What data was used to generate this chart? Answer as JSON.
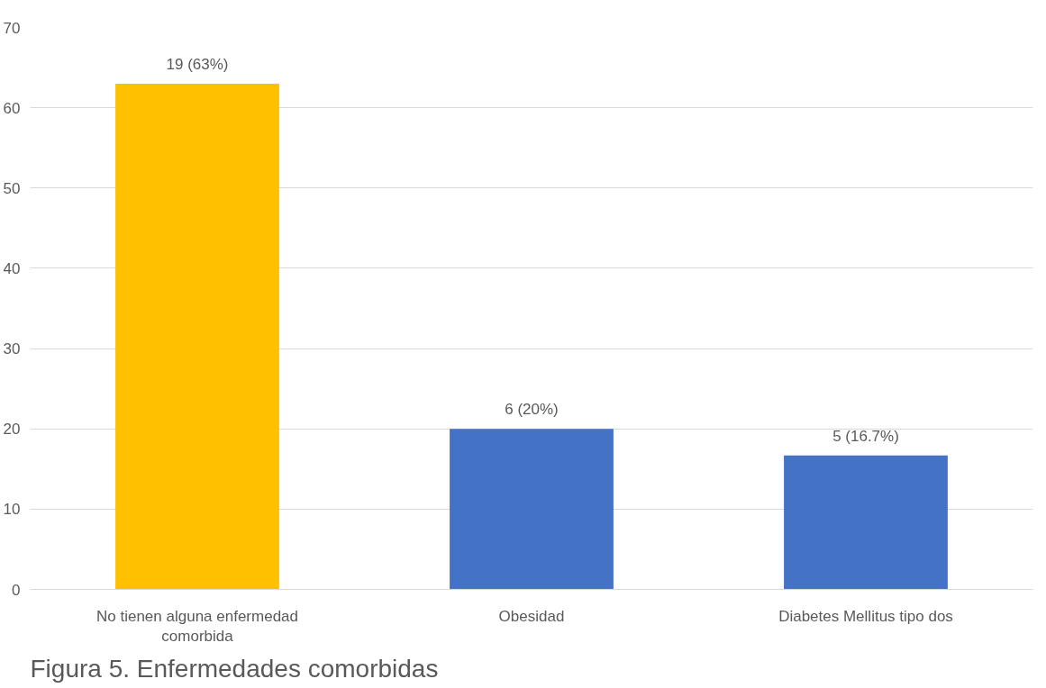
{
  "chart_data": {
    "type": "bar",
    "title": "Figura 5. Enfermedades  comorbidas",
    "categories": [
      "No tienen alguna enfermedad comorbida",
      "Obesidad",
      "Diabetes Mellitus tipo dos"
    ],
    "values": [
      63,
      20,
      16.7
    ],
    "colors": [
      "#ffc000",
      "#4472c4",
      "#4472c4"
    ],
    "value_labels": [
      "19 (63%)",
      "6 (20%)",
      "5 (16.7%)"
    ],
    "ylim": [
      0,
      70
    ],
    "yticks": [
      0,
      10,
      20,
      30,
      40,
      50,
      60,
      70
    ],
    "grid": "y"
  }
}
